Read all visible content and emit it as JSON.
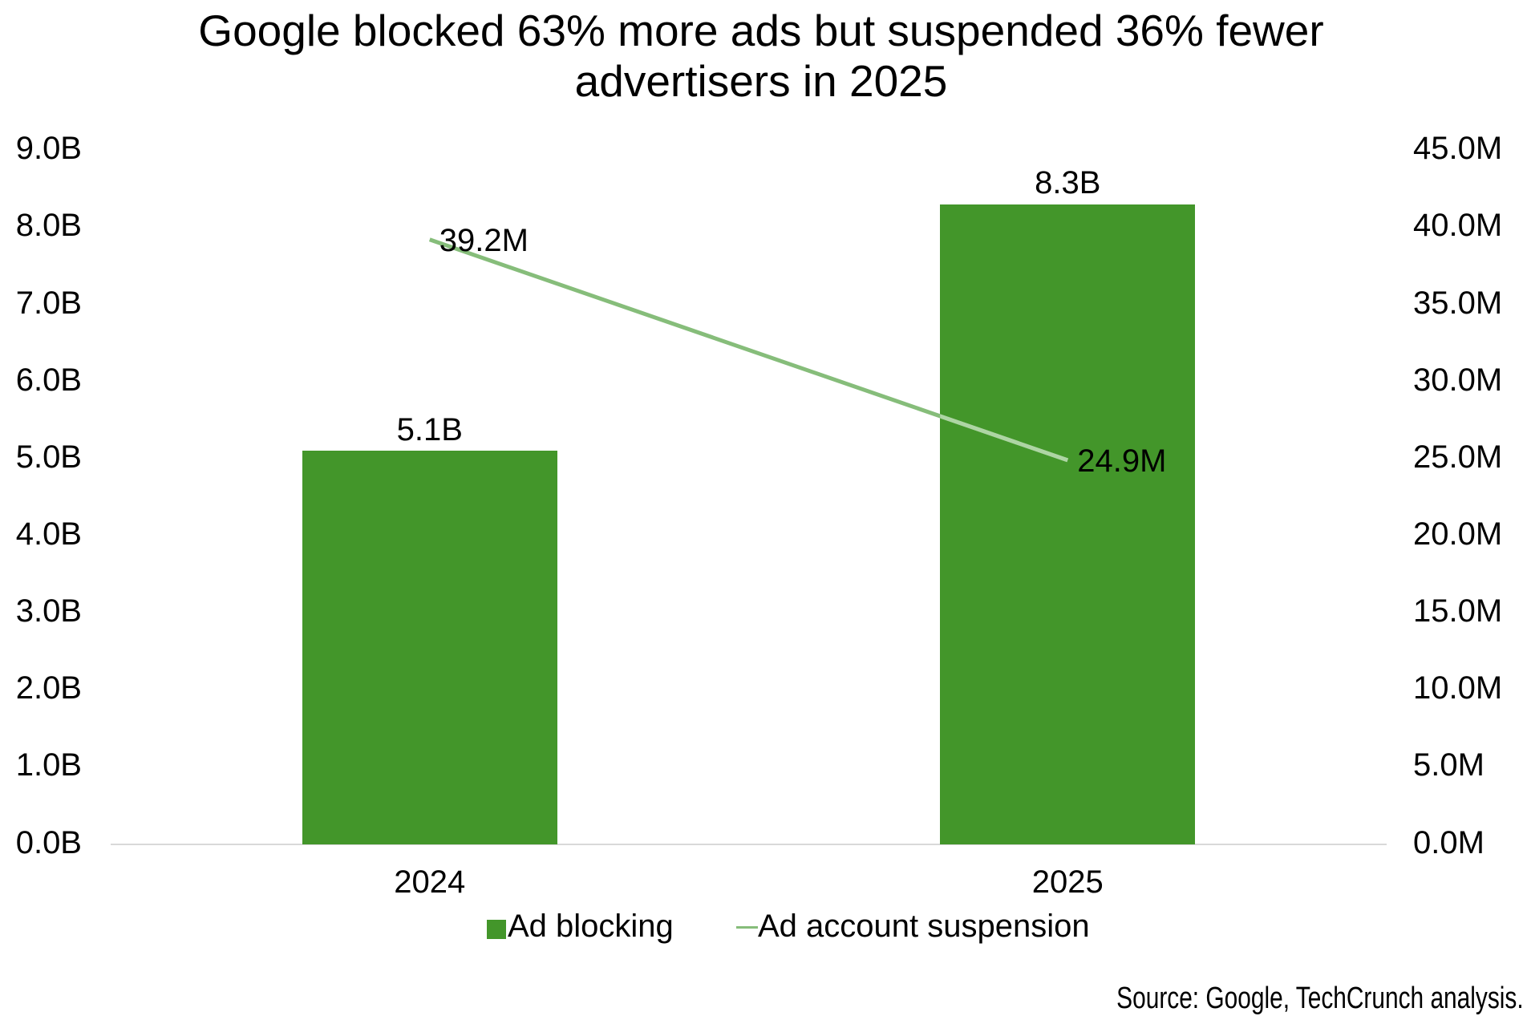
{
  "page": {
    "background_color": "#ffffff",
    "text_color": "#000000"
  },
  "chart_data": {
    "type": "combo",
    "title": "Google blocked 63% more ads but suspended 36% fewer advertisers in 2025",
    "title_lines": [
      "Google blocked 63% more ads but suspended 36% fewer",
      "advertisers in 2025"
    ],
    "categories": [
      "2024",
      "2025"
    ],
    "series": [
      {
        "name": "Ad blocking",
        "type": "bar",
        "axis": "left",
        "values": [
          5.1,
          8.3
        ],
        "value_labels": [
          "5.1B",
          "8.3B"
        ],
        "color": "#43962a"
      },
      {
        "name": "Ad account suspension",
        "type": "line",
        "axis": "right",
        "values": [
          39.2,
          24.9
        ],
        "value_labels": [
          "39.2M",
          "24.9M"
        ],
        "color": "#86bd7a",
        "color_over_bar": "#aed5a4"
      }
    ],
    "left_axis": {
      "min": 0,
      "max": 9,
      "step": 1,
      "unit": "B",
      "tick_labels": [
        "9.0B",
        "8.0B",
        "7.0B",
        "6.0B",
        "5.0B",
        "4.0B",
        "3.0B",
        "2.0B",
        "1.0B",
        "0.0B"
      ]
    },
    "right_axis": {
      "min": 0,
      "max": 45,
      "step": 5,
      "unit": "M",
      "tick_labels": [
        "45.0M",
        "40.0M",
        "35.0M",
        "30.0M",
        "25.0M",
        "20.0M",
        "15.0M",
        "10.0M",
        "5.0M",
        "0.0M"
      ]
    },
    "legend": {
      "position": "bottom",
      "items": [
        {
          "label": "Ad blocking",
          "marker": "square",
          "color": "#43962a"
        },
        {
          "label": "Ad account suspension",
          "marker": "line",
          "color": "#86bd7a"
        }
      ]
    },
    "grid": "none",
    "axis_line_color": "#d9d9d9",
    "source": "Source: Google, TechCrunch analysis."
  }
}
